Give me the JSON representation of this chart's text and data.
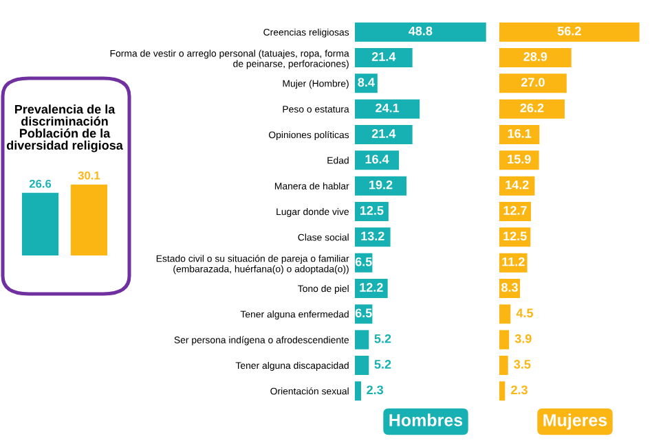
{
  "chart_data": [
    {
      "type": "bar",
      "title": "Prevalencia de la\ndiscriminación\nPoblación de la\ndiversidad religiosa",
      "categories": [
        null,
        null
      ],
      "values": [
        26.6,
        30.1
      ],
      "value_labels": [
        "26.6",
        "30.1"
      ],
      "colors": [
        "#17b0b3",
        "#fbb614"
      ]
    },
    {
      "type": "bar",
      "orientation": "horizontal",
      "legend": "bottom",
      "categories": [
        "Creencias religiosas",
        "Forma de vestir o arreglo personal (tatuajes, ropa, forma\nde peinarse, perforaciones)",
        "Mujer (Hombre)",
        "Peso o estatura",
        "Opiniones políticas",
        "Edad",
        "Manera de hablar",
        "Lugar donde vive",
        "Clase social",
        "Estado civil o su situación de pareja o familiar\n(embarazada, huérfana(o) o adoptada(o))",
        "Tono de piel",
        "Tener alguna enfermedad",
        "Ser persona indígena o afrodescendiente",
        "Tener alguna discapacidad",
        "Orientación sexual"
      ],
      "series": [
        {
          "name": "Hombres",
          "color": "#17b0b3",
          "values": [
            48.8,
            21.4,
            8.4,
            24.1,
            21.4,
            16.4,
            19.2,
            12.5,
            13.2,
            6.5,
            12.2,
            6.5,
            5.2,
            5.2,
            2.3
          ],
          "value_labels": [
            "48.8",
            "21.4",
            "8.4",
            "24.1",
            "21.4",
            "16.4",
            "19.2",
            "12.5",
            "13.2",
            "6.5",
            "12.2",
            "6.5",
            "5.2",
            "5.2",
            "2.3"
          ]
        }
      ]
    },
    {
      "type": "bar",
      "orientation": "horizontal",
      "legend": "bottom",
      "series": [
        {
          "name": "Mujeres",
          "color": "#fbb614",
          "values": [
            56.2,
            28.9,
            27.0,
            26.2,
            16.1,
            15.9,
            14.2,
            12.7,
            12.5,
            11.2,
            8.3,
            4.5,
            3.9,
            3.5,
            2.3
          ],
          "value_labels": [
            "56.2",
            "28.9",
            "27.0",
            "26.2",
            "16.1",
            "15.9",
            "14.2",
            "12.7",
            "12.5",
            "11.2",
            "8.3",
            "4.5",
            "3.9",
            "3.5",
            "2.3"
          ]
        }
      ]
    }
  ]
}
